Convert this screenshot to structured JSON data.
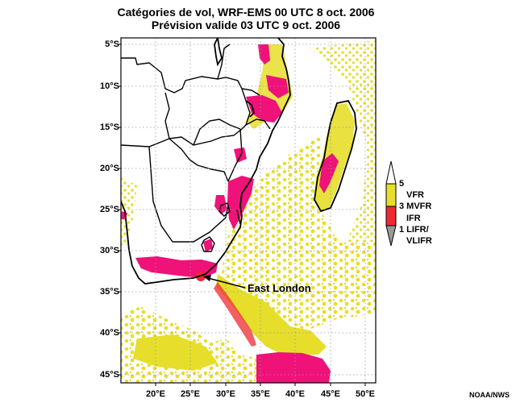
{
  "title": {
    "line1": "Catégories de vol, WRF-EMS 00 UTC 8 oct. 2006",
    "line2": "Prévision valide 03 UTC 9 oct. 2006"
  },
  "map": {
    "lat_range": [
      "5°S",
      "46°S"
    ],
    "lon_range": [
      "16°E",
      "52°E"
    ],
    "y_ticks": [
      "5°S",
      "10°S",
      "15°S",
      "20°S",
      "25°S",
      "30°S",
      "35°S",
      "40°S",
      "45°S"
    ],
    "x_ticks": [
      "20°E",
      "25°E",
      "30°E",
      "35°E",
      "40°E",
      "45°E",
      "50°E"
    ],
    "grid": "dotted",
    "annotation": {
      "label": "East London"
    }
  },
  "legend": {
    "labels": [
      "5",
      "VFR",
      "3 MVFR",
      "IFR",
      "1 LIFR/",
      "VLIFR"
    ],
    "colors": {
      "vfr": "#e6de2a",
      "ifr": "#ee2a30",
      "lifr": "#ee1279"
    }
  },
  "credit": "NOAA/NWS"
}
